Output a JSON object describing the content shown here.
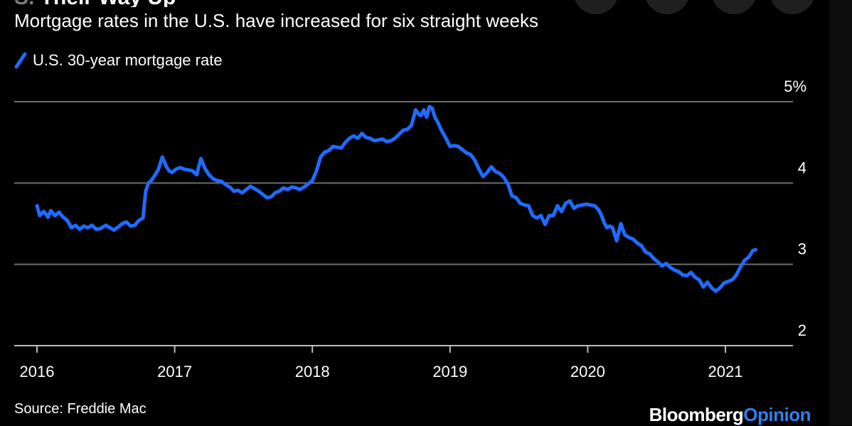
{
  "header": {
    "clipped_prefix": "S.",
    "clipped_text": "Their Way Up"
  },
  "chart_data": {
    "type": "line",
    "title": "Mortgage rates in the U.S. have increased for six straight weeks",
    "xlabel": "",
    "ylabel": "",
    "xlim": [
      2016.0,
      2021.45
    ],
    "ylim": [
      2,
      5
    ],
    "x_ticks": [
      2016,
      2017,
      2018,
      2019,
      2020,
      2021
    ],
    "x_tick_labels": [
      "2016",
      "2017",
      "2018",
      "2019",
      "2020",
      "2021"
    ],
    "y_ticks": [
      2,
      3,
      4,
      5
    ],
    "y_tick_labels": [
      "2",
      "3",
      "4",
      "5%"
    ],
    "grid": true,
    "legend": "top-left",
    "series": [
      {
        "name": "U.S. 30-year mortgage rate",
        "color": "#1f6bff",
        "x": [
          2016.0,
          2016.02,
          2016.05,
          2016.08,
          2016.1,
          2016.13,
          2016.16,
          2016.19,
          2016.22,
          2016.25,
          2016.28,
          2016.31,
          2016.34,
          2016.37,
          2016.4,
          2016.43,
          2016.46,
          2016.5,
          2016.53,
          2016.56,
          2016.59,
          2016.62,
          2016.65,
          2016.68,
          2016.71,
          2016.74,
          2016.77,
          2016.79,
          2016.81,
          2016.83,
          2016.85,
          2016.88,
          2016.91,
          2016.94,
          2016.96,
          2016.98,
          2017.01,
          2017.04,
          2017.07,
          2017.1,
          2017.13,
          2017.16,
          2017.19,
          2017.22,
          2017.25,
          2017.28,
          2017.31,
          2017.34,
          2017.37,
          2017.4,
          2017.43,
          2017.46,
          2017.49,
          2017.52,
          2017.55,
          2017.58,
          2017.61,
          2017.64,
          2017.67,
          2017.7,
          2017.73,
          2017.76,
          2017.79,
          2017.82,
          2017.85,
          2017.88,
          2017.91,
          2017.94,
          2017.97,
          2018.0,
          2018.03,
          2018.06,
          2018.09,
          2018.12,
          2018.15,
          2018.18,
          2018.21,
          2018.24,
          2018.27,
          2018.3,
          2018.33,
          2018.36,
          2018.39,
          2018.42,
          2018.45,
          2018.48,
          2018.51,
          2018.54,
          2018.57,
          2018.6,
          2018.63,
          2018.66,
          2018.69,
          2018.72,
          2018.75,
          2018.77,
          2018.79,
          2018.81,
          2018.83,
          2018.85,
          2018.87,
          2018.89,
          2018.91,
          2018.94,
          2018.97,
          2019.0,
          2019.03,
          2019.06,
          2019.09,
          2019.12,
          2019.15,
          2019.18,
          2019.21,
          2019.24,
          2019.27,
          2019.3,
          2019.33,
          2019.36,
          2019.39,
          2019.42,
          2019.45,
          2019.48,
          2019.51,
          2019.54,
          2019.57,
          2019.6,
          2019.63,
          2019.66,
          2019.69,
          2019.72,
          2019.75,
          2019.78,
          2019.81,
          2019.84,
          2019.87,
          2019.9,
          2019.93,
          2019.96,
          2019.99,
          2020.02,
          2020.05,
          2020.08,
          2020.1,
          2020.12,
          2020.14,
          2020.16,
          2020.18,
          2020.21,
          2020.24,
          2020.27,
          2020.3,
          2020.33,
          2020.36,
          2020.39,
          2020.42,
          2020.45,
          2020.48,
          2020.51,
          2020.54,
          2020.57,
          2020.6,
          2020.63,
          2020.66,
          2020.69,
          2020.72,
          2020.75,
          2020.78,
          2020.81,
          2020.84,
          2020.87,
          2020.9,
          2020.93,
          2020.96,
          2020.99,
          2021.02,
          2021.05,
          2021.08,
          2021.11,
          2021.14,
          2021.17,
          2021.2,
          2021.22
        ],
        "values": [
          3.72,
          3.6,
          3.65,
          3.58,
          3.66,
          3.6,
          3.64,
          3.58,
          3.54,
          3.45,
          3.48,
          3.43,
          3.47,
          3.45,
          3.48,
          3.43,
          3.44,
          3.48,
          3.45,
          3.42,
          3.46,
          3.5,
          3.52,
          3.47,
          3.48,
          3.54,
          3.57,
          3.9,
          4.0,
          4.03,
          4.08,
          4.16,
          4.32,
          4.2,
          4.15,
          4.13,
          4.17,
          4.19,
          4.17,
          4.16,
          4.15,
          4.1,
          4.3,
          4.18,
          4.1,
          4.05,
          4.03,
          4.02,
          3.98,
          3.95,
          3.9,
          3.91,
          3.88,
          3.92,
          3.96,
          3.93,
          3.9,
          3.86,
          3.82,
          3.83,
          3.88,
          3.9,
          3.94,
          3.92,
          3.95,
          3.94,
          3.92,
          3.95,
          3.99,
          4.03,
          4.15,
          4.32,
          4.38,
          4.4,
          4.45,
          4.44,
          4.43,
          4.5,
          4.55,
          4.58,
          4.55,
          4.61,
          4.56,
          4.55,
          4.52,
          4.53,
          4.54,
          4.51,
          4.52,
          4.55,
          4.6,
          4.65,
          4.66,
          4.71,
          4.9,
          4.85,
          4.83,
          4.9,
          4.81,
          4.94,
          4.92,
          4.81,
          4.75,
          4.64,
          4.55,
          4.45,
          4.46,
          4.45,
          4.41,
          4.37,
          4.35,
          4.28,
          4.17,
          4.08,
          4.13,
          4.2,
          4.14,
          4.12,
          4.07,
          3.99,
          3.84,
          3.82,
          3.75,
          3.73,
          3.72,
          3.6,
          3.57,
          3.6,
          3.49,
          3.6,
          3.6,
          3.72,
          3.65,
          3.75,
          3.78,
          3.69,
          3.72,
          3.73,
          3.74,
          3.73,
          3.72,
          3.67,
          3.6,
          3.51,
          3.45,
          3.47,
          3.45,
          3.29,
          3.5,
          3.36,
          3.33,
          3.31,
          3.26,
          3.23,
          3.15,
          3.13,
          3.07,
          3.03,
          2.98,
          3.01,
          2.96,
          2.93,
          2.91,
          2.87,
          2.86,
          2.9,
          2.84,
          2.81,
          2.72,
          2.78,
          2.71,
          2.67,
          2.71,
          2.77,
          2.79,
          2.81,
          2.87,
          2.97,
          3.05,
          3.09,
          3.17,
          3.18
        ]
      }
    ]
  },
  "footer": {
    "source": "Source: Freddie Mac",
    "brand_bold": "Bloomberg",
    "brand_accent": "Opinion"
  }
}
